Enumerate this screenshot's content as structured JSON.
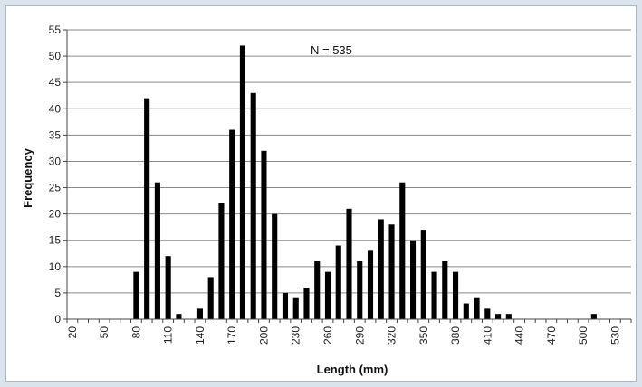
{
  "chart_data": {
    "type": "bar",
    "title": "",
    "xlabel": "Length (mm)",
    "ylabel": "Frequency",
    "annotation": "N = 535",
    "ylim": [
      0,
      55
    ],
    "yticks": [
      0,
      5,
      10,
      15,
      20,
      25,
      30,
      35,
      40,
      45,
      50,
      55
    ],
    "xlim": [
      20,
      550
    ],
    "xticks": [
      20,
      50,
      80,
      110,
      140,
      170,
      200,
      230,
      260,
      290,
      320,
      350,
      380,
      410,
      440,
      470,
      500,
      530
    ],
    "grid": true,
    "bar_color": "#000000",
    "x": [
      80,
      90,
      100,
      110,
      120,
      140,
      150,
      160,
      170,
      180,
      190,
      200,
      210,
      220,
      230,
      240,
      250,
      260,
      270,
      280,
      290,
      300,
      310,
      320,
      330,
      340,
      350,
      360,
      370,
      380,
      390,
      400,
      410,
      420,
      430,
      510
    ],
    "values": [
      9,
      42,
      26,
      12,
      1,
      2,
      8,
      22,
      36,
      52,
      43,
      32,
      20,
      5,
      4,
      6,
      11,
      9,
      14,
      21,
      11,
      13,
      19,
      18,
      26,
      15,
      17,
      9,
      11,
      9,
      3,
      4,
      2,
      1,
      1,
      1
    ]
  }
}
